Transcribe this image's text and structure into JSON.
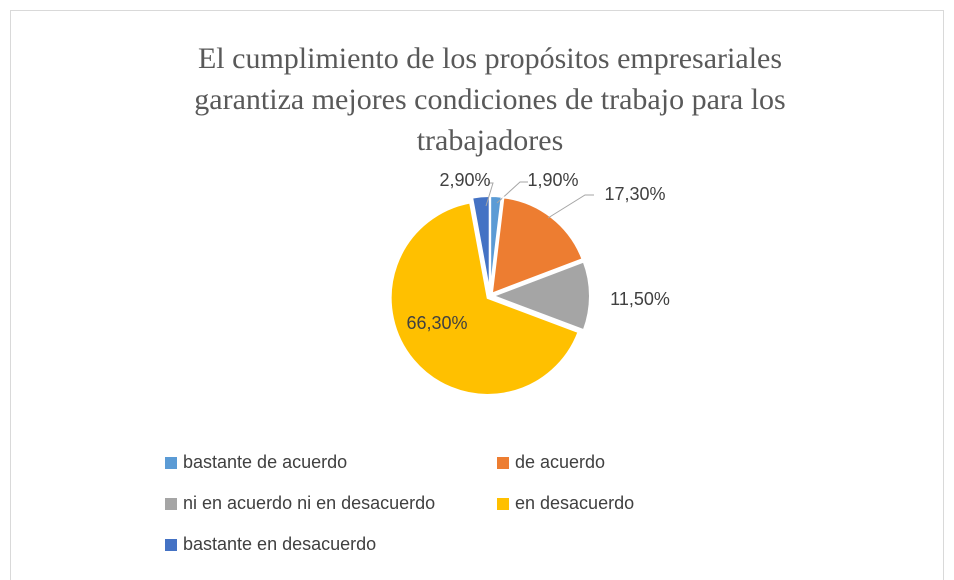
{
  "chart_data": {
    "type": "pie",
    "title": "El cumplimiento de los propósitos empresariales garantiza mejores condiciones de trabajo para los trabajadores",
    "categories": [
      "bastante de acuerdo",
      "de acuerdo",
      "ni en acuerdo ni en desacuerdo",
      "en desacuerdo",
      "bastante en desacuerdo"
    ],
    "values": [
      1.9,
      17.3,
      11.5,
      66.3,
      2.9
    ],
    "value_labels": [
      "1,90%",
      "17,30%",
      "11,50%",
      "66,30%",
      "2,90%"
    ],
    "colors": [
      "#5b9bd5",
      "#ed7d31",
      "#a5a5a5",
      "#ffc000",
      "#4472c4"
    ],
    "legend": "bottom"
  }
}
